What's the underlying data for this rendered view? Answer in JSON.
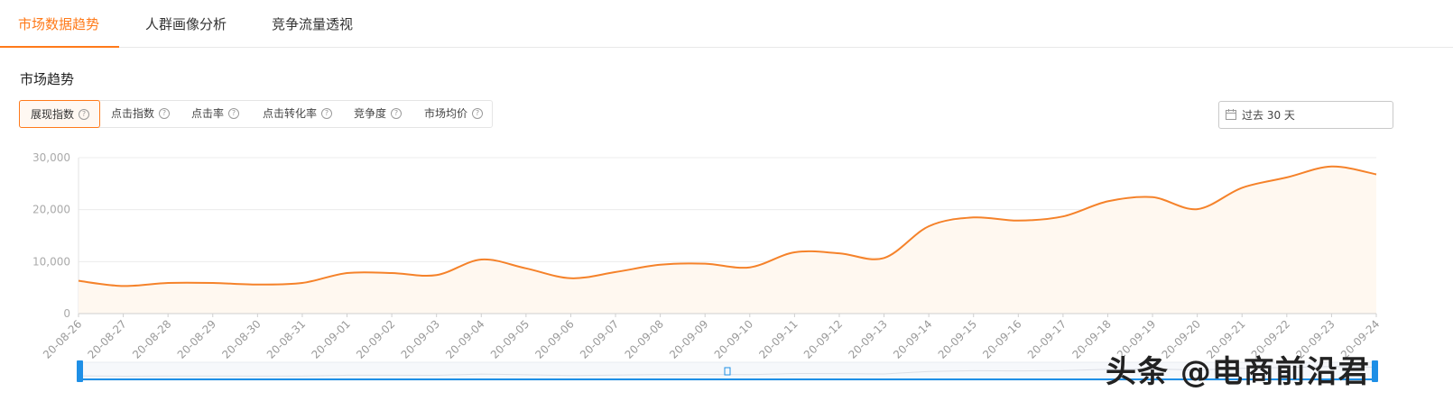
{
  "tabs": [
    {
      "label": "市场数据趋势",
      "active": true
    },
    {
      "label": "人群画像分析",
      "active": false
    },
    {
      "label": "竞争流量透视",
      "active": false
    }
  ],
  "section_title": "市场趋势",
  "metric_tabs": [
    {
      "label": "展现指数",
      "active": true
    },
    {
      "label": "点击指数",
      "active": false
    },
    {
      "label": "点击率",
      "active": false
    },
    {
      "label": "点击转化率",
      "active": false
    },
    {
      "label": "竞争度",
      "active": false
    },
    {
      "label": "市场均价",
      "active": false
    }
  ],
  "help_glyph": "?",
  "date_range": {
    "label": "过去 30 天",
    "icon": "calendar-icon"
  },
  "colors": {
    "accent": "#ff7a1a",
    "line": "#f5822a",
    "area": "#fff8f0",
    "slider": "#1e8fe6"
  },
  "chart_data": {
    "type": "area",
    "x": [
      "20-08-26",
      "20-08-27",
      "20-08-28",
      "20-08-29",
      "20-08-30",
      "20-08-31",
      "20-09-01",
      "20-09-02",
      "20-09-03",
      "20-09-04",
      "20-09-05",
      "20-09-06",
      "20-09-07",
      "20-09-08",
      "20-09-09",
      "20-09-10",
      "20-09-11",
      "20-09-12",
      "20-09-13",
      "20-09-14",
      "20-09-15",
      "20-09-16",
      "20-09-17",
      "20-09-18",
      "20-09-19",
      "20-09-20",
      "20-09-21",
      "20-09-22",
      "20-09-23",
      "20-09-24"
    ],
    "series": [
      {
        "values": [
          6300,
          5300,
          5900,
          5900,
          5600,
          5900,
          7800,
          7800,
          7400,
          10400,
          8700,
          6800,
          8000,
          9400,
          9600,
          8900,
          11800,
          11600,
          10700,
          16800,
          18500,
          17900,
          18700,
          21600,
          22400,
          20100,
          24200,
          26200,
          28300,
          26800
        ]
      }
    ],
    "yticks": [
      "0",
      "10,000",
      "20,000",
      "30,000"
    ],
    "ylim": [
      0,
      30000
    ],
    "grid": true,
    "legend": "none"
  },
  "watermark": "头条 @电商前沿君"
}
